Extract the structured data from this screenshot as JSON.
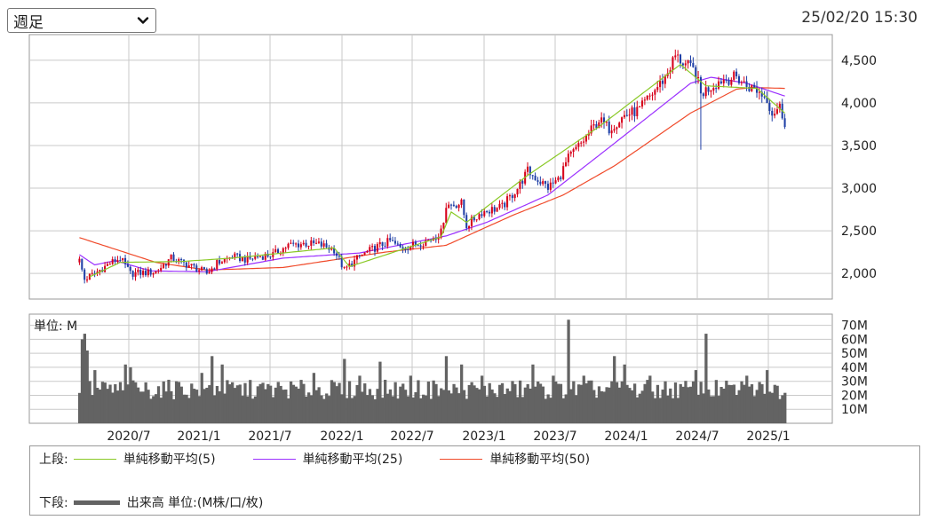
{
  "controls": {
    "period_select": "週足",
    "timestamp": "25/02/20 15:30"
  },
  "legend": {
    "upper_label": "上段:",
    "lower_label": "下段:",
    "ma_items": [
      {
        "label": "単純移動平均(5)",
        "color": "#8ac926"
      },
      {
        "label": "単純移動平均(25)",
        "color": "#9b30ff"
      },
      {
        "label": "単純移動平均(50)",
        "color": "#f04a2a"
      }
    ],
    "volume_label": "出来高 単位:(M株/口/枚)",
    "volume_color": "#636363"
  },
  "chart_data": {
    "type": "candlestick",
    "x_ticks": [
      "2020/7",
      "2021/1",
      "2021/7",
      "2022/1",
      "2022/7",
      "2023/1",
      "2023/7",
      "2024/1",
      "2024/7",
      "2025/1"
    ],
    "price": {
      "ylim": [
        1700,
        4800
      ],
      "y_ticks": [
        "2,000",
        "2,500",
        "3,000",
        "3,500",
        "4,000",
        "4,500"
      ],
      "up_color": "#d7001a",
      "down_color": "#1f3fa6",
      "close_anchors": [
        [
          0,
          2150
        ],
        [
          2,
          1930
        ],
        [
          6,
          2000
        ],
        [
          12,
          2120
        ],
        [
          16,
          2180
        ],
        [
          20,
          2000
        ],
        [
          26,
          2010
        ],
        [
          30,
          2020
        ],
        [
          36,
          2180
        ],
        [
          40,
          2130
        ],
        [
          46,
          2060
        ],
        [
          50,
          2000
        ],
        [
          54,
          2120
        ],
        [
          60,
          2200
        ],
        [
          66,
          2160
        ],
        [
          70,
          2200
        ],
        [
          76,
          2220
        ],
        [
          82,
          2330
        ],
        [
          88,
          2350
        ],
        [
          94,
          2340
        ],
        [
          100,
          2280
        ],
        [
          104,
          2040
        ],
        [
          110,
          2200
        ],
        [
          116,
          2300
        ],
        [
          122,
          2380
        ],
        [
          126,
          2300
        ],
        [
          132,
          2340
        ],
        [
          138,
          2400
        ],
        [
          142,
          2480
        ],
        [
          144,
          2800
        ],
        [
          150,
          2820
        ],
        [
          152,
          2560
        ],
        [
          158,
          2720
        ],
        [
          166,
          2780
        ],
        [
          172,
          3000
        ],
        [
          176,
          3200
        ],
        [
          180,
          3100
        ],
        [
          184,
          3010
        ],
        [
          188,
          3100
        ],
        [
          192,
          3350
        ],
        [
          198,
          3560
        ],
        [
          204,
          3800
        ],
        [
          208,
          3700
        ],
        [
          214,
          3850
        ],
        [
          220,
          3920
        ],
        [
          226,
          4150
        ],
        [
          230,
          4300
        ],
        [
          234,
          4550
        ],
        [
          238,
          4450
        ],
        [
          242,
          4360
        ],
        [
          244,
          4100
        ],
        [
          246,
          4150
        ],
        [
          252,
          4270
        ],
        [
          258,
          4300
        ],
        [
          262,
          4200
        ],
        [
          266,
          4150
        ],
        [
          270,
          4050
        ],
        [
          272,
          3880
        ],
        [
          275,
          3950
        ],
        [
          277,
          3780
        ]
      ],
      "ma5_anchors": [
        [
          4,
          1960
        ],
        [
          16,
          2130
        ],
        [
          40,
          2140
        ],
        [
          60,
          2180
        ],
        [
          100,
          2300
        ],
        [
          106,
          2080
        ],
        [
          142,
          2430
        ],
        [
          146,
          2720
        ],
        [
          152,
          2600
        ],
        [
          176,
          3150
        ],
        [
          204,
          3720
        ],
        [
          236,
          4450
        ],
        [
          246,
          4200
        ],
        [
          266,
          4170
        ],
        [
          277,
          3880
        ]
      ],
      "ma25_anchors": [
        [
          0,
          2220
        ],
        [
          6,
          2100
        ],
        [
          14,
          2150
        ],
        [
          28,
          2030
        ],
        [
          50,
          2020
        ],
        [
          80,
          2180
        ],
        [
          110,
          2240
        ],
        [
          144,
          2440
        ],
        [
          160,
          2600
        ],
        [
          184,
          2920
        ],
        [
          206,
          3430
        ],
        [
          226,
          3900
        ],
        [
          240,
          4230
        ],
        [
          248,
          4300
        ],
        [
          262,
          4230
        ],
        [
          277,
          4080
        ]
      ],
      "ma50_anchors": [
        [
          0,
          2420
        ],
        [
          30,
          2130
        ],
        [
          50,
          2040
        ],
        [
          80,
          2070
        ],
        [
          120,
          2250
        ],
        [
          144,
          2330
        ],
        [
          170,
          2680
        ],
        [
          190,
          2920
        ],
        [
          210,
          3260
        ],
        [
          240,
          3880
        ],
        [
          258,
          4160
        ],
        [
          264,
          4180
        ],
        [
          277,
          4170
        ]
      ]
    },
    "volume": {
      "unit_label": "単位: M",
      "ylim": [
        0,
        78
      ],
      "y_ticks": [
        "10M",
        "20M",
        "30M",
        "40M",
        "50M",
        "60M",
        "70M"
      ],
      "bar_color": "#636363",
      "base": 22,
      "spikes": [
        [
          1,
          60
        ],
        [
          2,
          64
        ],
        [
          3,
          52
        ],
        [
          6,
          38
        ],
        [
          18,
          42
        ],
        [
          20,
          40
        ],
        [
          38,
          30
        ],
        [
          48,
          36
        ],
        [
          52,
          48
        ],
        [
          56,
          42
        ],
        [
          74,
          28
        ],
        [
          92,
          36
        ],
        [
          104,
          46
        ],
        [
          110,
          34
        ],
        [
          118,
          44
        ],
        [
          130,
          34
        ],
        [
          140,
          28
        ],
        [
          144,
          48
        ],
        [
          150,
          42
        ],
        [
          158,
          34
        ],
        [
          178,
          42
        ],
        [
          186,
          34
        ],
        [
          192,
          74
        ],
        [
          198,
          34
        ],
        [
          210,
          48
        ],
        [
          214,
          42
        ],
        [
          224,
          34
        ],
        [
          236,
          28
        ],
        [
          242,
          38
        ],
        [
          246,
          64
        ],
        [
          252,
          26
        ],
        [
          262,
          34
        ],
        [
          270,
          38
        ],
        [
          276,
          20
        ]
      ]
    }
  }
}
